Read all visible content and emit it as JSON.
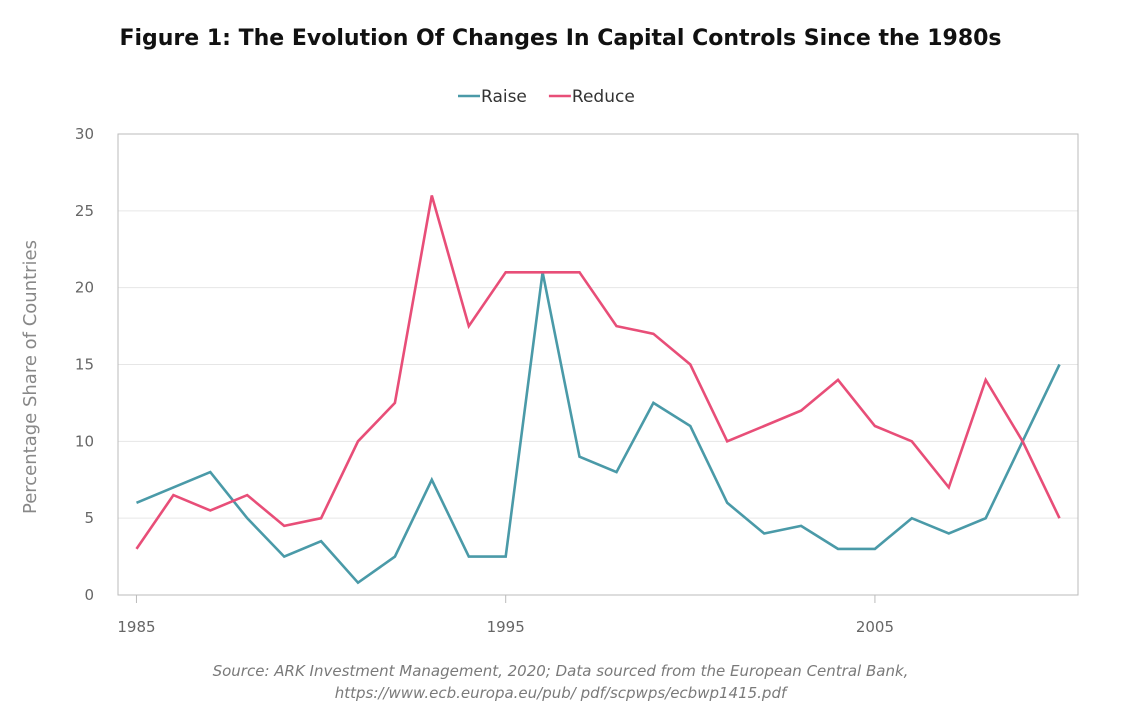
{
  "chart_data": {
    "type": "line",
    "title": "Figure 1: The Evolution Of Changes In Capital Controls Since the 1980s",
    "xlabel": "",
    "ylabel": "Percentage Share of  Countries",
    "x": [
      1985,
      1986,
      1987,
      1988,
      1989,
      1990,
      1991,
      1992,
      1993,
      1994,
      1995,
      1996,
      1997,
      1998,
      1999,
      2000,
      2001,
      2002,
      2003,
      2004,
      2005,
      2006,
      2007,
      2008,
      2009,
      2010
    ],
    "xlim": [
      1984.5,
      2010.5
    ],
    "ylim": [
      0,
      30
    ],
    "x_ticks": [
      1985,
      1995,
      2005
    ],
    "x_tick_labels": [
      "1985",
      "1995",
      "2005"
    ],
    "y_ticks": [
      0,
      5,
      10,
      15,
      20,
      25,
      30
    ],
    "y_tick_labels": [
      "0",
      "5",
      "10",
      "15",
      "20",
      "25",
      "30"
    ],
    "grid": "horizontal",
    "legend_position": "top-center",
    "series": [
      {
        "name": "Raise",
        "color": "#4a9aa8",
        "values": [
          6,
          7,
          8,
          5,
          2.5,
          3.5,
          0.8,
          2.5,
          7.5,
          2.5,
          2.5,
          21,
          9,
          8,
          12.5,
          11,
          6,
          4,
          4.5,
          3,
          3,
          5,
          4,
          5,
          10,
          15
        ]
      },
      {
        "name": "Reduce",
        "color": "#e84e78",
        "values": [
          3,
          6.5,
          5.5,
          6.5,
          4.5,
          5,
          10,
          12.5,
          26,
          17.5,
          21,
          21,
          21,
          17.5,
          17,
          15,
          10,
          11,
          12,
          14,
          11,
          10,
          7,
          14,
          10,
          5
        ]
      }
    ],
    "source_line1": "Source: ARK Investment Management, 2020; Data sourced from the European Central Bank,",
    "source_line2": "https://www.ecb.europa.eu/pub/ pdf/scpwps/ecbwp1415.pdf"
  }
}
